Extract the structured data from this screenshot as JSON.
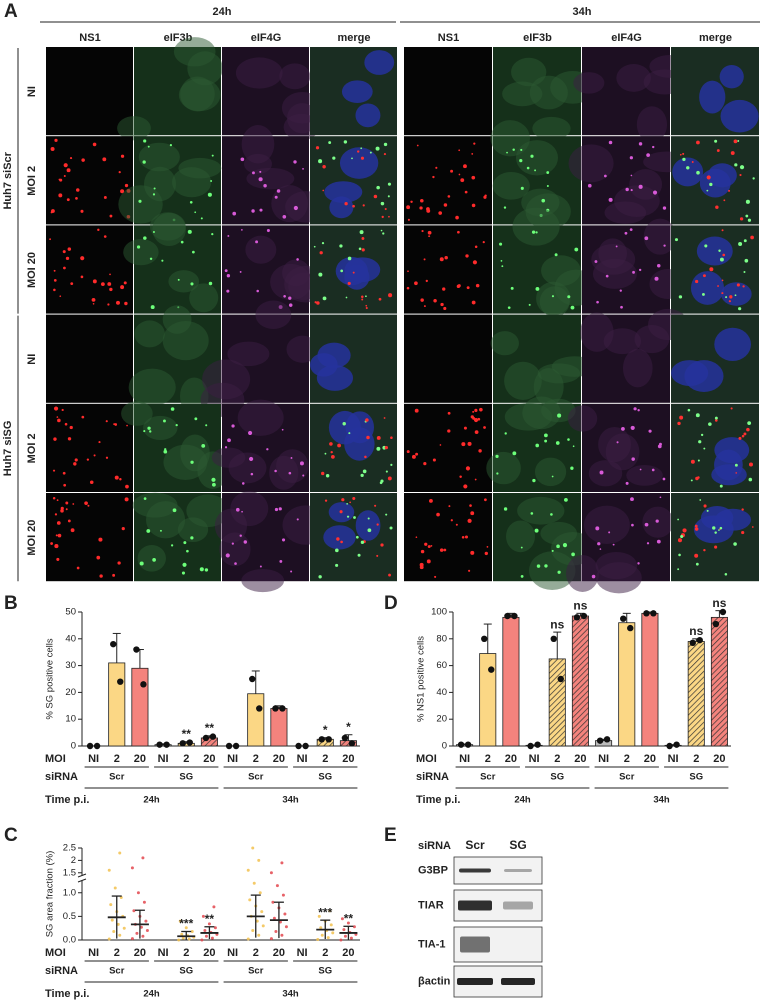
{
  "panel_a": {
    "label": "A",
    "times": [
      {
        "label": "24h",
        "channels": [
          "NS1",
          "eIF3b",
          "eIF4G",
          "merge"
        ]
      },
      {
        "label": "34h",
        "channels": [
          "NS1",
          "eIF3b",
          "eIF4G",
          "merge"
        ]
      }
    ],
    "groups": [
      {
        "label": "Huh7 siScr",
        "rows": [
          "NI",
          "MOI 2",
          "MOI 20"
        ]
      },
      {
        "label": "Huh7 siSG",
        "rows": [
          "NI",
          "MOI 2",
          "MOI 20"
        ]
      }
    ]
  },
  "chart_data": [
    {
      "panel": "B",
      "type": "bar",
      "y_label": "% SG positive cells",
      "row_labels": [
        "MOI",
        "siRNA",
        "Time p.i."
      ],
      "categories": [
        "NI",
        "2",
        "20",
        "NI",
        "2",
        "20",
        "NI",
        "2",
        "20",
        "NI",
        "2",
        "20"
      ],
      "sirna": [
        "Scr",
        "SG",
        "Scr",
        "SG"
      ],
      "time": [
        "24h",
        "34h"
      ],
      "values": [
        0,
        31,
        29,
        0.5,
        1,
        3,
        0,
        19.5,
        14,
        0,
        2.5,
        2
      ],
      "errors": [
        0,
        11,
        7,
        0.3,
        0.6,
        0.8,
        0,
        8.5,
        1,
        0,
        0.6,
        2.2
      ],
      "points": [
        [
          0,
          0
        ],
        [
          38,
          24
        ],
        [
          36,
          23
        ],
        [
          0.5,
          0.5
        ],
        [
          1,
          1.3
        ],
        [
          3,
          3.5
        ],
        [
          0,
          0
        ],
        [
          25,
          14
        ],
        [
          14,
          14
        ],
        [
          0,
          0
        ],
        [
          2.5,
          2.5
        ],
        [
          3,
          1
        ]
      ],
      "colors": [
        "#bbbbbb",
        "#fbd785",
        "#f4837d",
        "#bbbbbb",
        "#fbd785",
        "#f4837d",
        "#bbbbbb",
        "#fbd785",
        "#f4837d",
        "#bbbbbb",
        "#fbd785",
        "#f4837d"
      ],
      "hatched": [
        false,
        false,
        false,
        true,
        true,
        true,
        false,
        false,
        false,
        true,
        true,
        true
      ],
      "significance": [
        null,
        null,
        null,
        null,
        "**",
        "**",
        null,
        null,
        null,
        null,
        "*",
        "*"
      ],
      "ylim": [
        0,
        50
      ],
      "yticks": [
        0,
        10,
        20,
        30,
        40,
        50
      ]
    },
    {
      "panel": "C",
      "type": "dotplot",
      "y_label": "SG area fraction (%)",
      "row_labels": [
        "MOI",
        "siRNA",
        "Time p.i."
      ],
      "categories": [
        "NI",
        "2",
        "20",
        "NI",
        "2",
        "20",
        "NI",
        "2",
        "20",
        "NI",
        "2",
        "20"
      ],
      "sirna": [
        "Scr",
        "SG",
        "Scr",
        "SG"
      ],
      "time": [
        "24h",
        "34h"
      ],
      "values": [
        null,
        0.48,
        0.33,
        null,
        0.08,
        0.15,
        null,
        0.5,
        0.42,
        null,
        0.22,
        0.15
      ],
      "errors": [
        null,
        0.45,
        0.3,
        null,
        0.1,
        0.13,
        null,
        0.45,
        0.38,
        null,
        0.2,
        0.14
      ],
      "points": [
        [],
        [
          0.02,
          0.1,
          0.18,
          0.25,
          0.33,
          0.42,
          0.5,
          0.6,
          0.75,
          0.9,
          1.1,
          1.6,
          2.3
        ],
        [
          0.03,
          0.08,
          0.14,
          0.2,
          0.27,
          0.33,
          0.4,
          0.5,
          0.62,
          0.8,
          1.0,
          1.7,
          2.1
        ],
        [],
        [
          0,
          0.02,
          0.04,
          0.06,
          0.09,
          0.12,
          0.18,
          0.26,
          0.4
        ],
        [
          0,
          0.04,
          0.08,
          0.12,
          0.16,
          0.2,
          0.26,
          0.34,
          0.5,
          0.7
        ],
        [],
        [
          0.02,
          0.1,
          0.2,
          0.3,
          0.4,
          0.5,
          0.6,
          0.72,
          0.85,
          1.0,
          1.2,
          1.6,
          2.0,
          2.5
        ],
        [
          0.03,
          0.1,
          0.18,
          0.28,
          0.38,
          0.46,
          0.55,
          0.68,
          0.8,
          0.95,
          1.15,
          1.5,
          1.9
        ],
        [],
        [
          0.01,
          0.05,
          0.1,
          0.15,
          0.2,
          0.26,
          0.32,
          0.4,
          0.5,
          0.62
        ],
        [
          0,
          0.04,
          0.08,
          0.12,
          0.16,
          0.22,
          0.28,
          0.36,
          0.45
        ]
      ],
      "colors": [
        null,
        "#f2c14e",
        "#e3464d",
        null,
        "#f2c14e",
        "#e3464d",
        null,
        "#f2c14e",
        "#e3464d",
        null,
        "#f2c14e",
        "#e3464d"
      ],
      "significance": [
        null,
        null,
        null,
        null,
        "***",
        "**",
        null,
        null,
        null,
        null,
        "***",
        "**"
      ],
      "ylim": [
        0,
        2.5
      ],
      "axis_break": [
        1.27,
        1.37
      ],
      "yticks": [
        {
          "value": 0,
          "label": "0.0"
        },
        0.5,
        {
          "value": 1,
          "label": "1.0"
        },
        1.5,
        2,
        2.5
      ]
    },
    {
      "panel": "D",
      "type": "bar",
      "y_label": "% NS1 positive cells",
      "row_labels": [
        "MOI",
        "siRNA",
        "Time p.i."
      ],
      "categories": [
        "NI",
        "2",
        "20",
        "NI",
        "2",
        "20",
        "NI",
        "2",
        "20",
        "NI",
        "2",
        "20"
      ],
      "sirna": [
        "Scr",
        "SG",
        "Scr",
        "SG"
      ],
      "time": [
        "24h",
        "34h"
      ],
      "values": [
        1,
        69,
        96,
        0.5,
        65,
        97,
        4,
        92,
        99,
        0.5,
        78,
        96
      ],
      "errors": [
        0.5,
        22,
        3,
        0.3,
        20,
        2,
        1,
        7,
        1,
        0.5,
        2,
        5
      ],
      "points": [
        [
          1,
          1
        ],
        [
          80,
          57
        ],
        [
          97,
          97
        ],
        [
          0,
          1
        ],
        [
          80,
          50
        ],
        [
          96,
          97
        ],
        [
          4,
          5
        ],
        [
          95,
          88
        ],
        [
          99,
          99
        ],
        [
          0,
          1
        ],
        [
          77,
          79
        ],
        [
          91,
          100
        ]
      ],
      "colors": [
        "#bbbbbb",
        "#fbd785",
        "#f4837d",
        "#bbbbbb",
        "#fbd785",
        "#f4837d",
        "#bbbbbb",
        "#fbd785",
        "#f4837d",
        "#bbbbbb",
        "#fbd785",
        "#f4837d"
      ],
      "hatched": [
        false,
        false,
        false,
        true,
        true,
        true,
        false,
        false,
        false,
        true,
        true,
        true
      ],
      "significance": [
        null,
        null,
        null,
        null,
        "ns",
        "ns",
        null,
        null,
        null,
        null,
        "ns",
        "ns"
      ],
      "ylim": [
        0,
        100
      ],
      "yticks": [
        0,
        20,
        40,
        60,
        80,
        100
      ]
    }
  ],
  "panel_e": {
    "label": "E",
    "header": "siRNA",
    "lanes": [
      "Scr",
      "SG"
    ],
    "rows": [
      "G3BP",
      "TIAR",
      "TIA-1",
      "βactin"
    ]
  }
}
